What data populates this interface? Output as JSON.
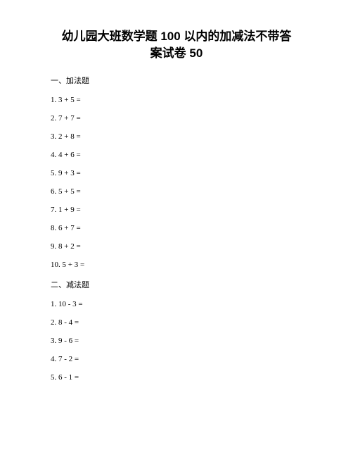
{
  "title_line1": "幼儿园大班数学题 100 以内的加减法不带答",
  "title_line2": "案试卷 50",
  "title_fontsize": "17px",
  "section1": {
    "header": "一、加法题",
    "problems": [
      "1. 3 + 5 =",
      "2. 7 + 7 =",
      "3. 2 + 8 =",
      "4. 4 + 6 =",
      "5. 9 + 3 =",
      "6. 5 + 5 =",
      "7. 1 + 9 =",
      "8. 6 + 7 =",
      "9. 8 + 2 =",
      "10. 5 + 3 ="
    ]
  },
  "section2": {
    "header": "二、减法题",
    "problems": [
      "1. 10 - 3 =",
      "2. 8 - 4 =",
      "3. 9 - 6 =",
      "4. 7 - 2 =",
      "5. 6 - 1 ="
    ]
  },
  "body_fontsize": "11px",
  "text_color": "#000000",
  "background_color": "#ffffff"
}
